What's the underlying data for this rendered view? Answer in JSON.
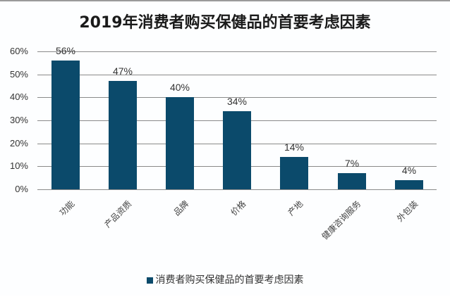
{
  "chart_data": {
    "type": "bar",
    "title": "2019年消费者购买保健品的首要考虑因素",
    "categories": [
      "功能",
      "产品资质",
      "品牌",
      "价格",
      "产地",
      "健康咨询服务",
      "外包装"
    ],
    "series": [
      {
        "name": "消费者购买保健品的首要考虑因素",
        "values": [
          56,
          47,
          40,
          34,
          14,
          7,
          4
        ]
      }
    ],
    "data_labels": [
      "56%",
      "47%",
      "40%",
      "34%",
      "14%",
      "7%",
      "4%"
    ],
    "xlabel": "",
    "ylabel": "",
    "ylim": [
      0,
      60
    ],
    "yticks": [
      "0%",
      "10%",
      "20%",
      "30%",
      "40%",
      "50%",
      "60%"
    ],
    "grid": true,
    "legend_position": "bottom",
    "bar_color": "#0b4a6b"
  }
}
